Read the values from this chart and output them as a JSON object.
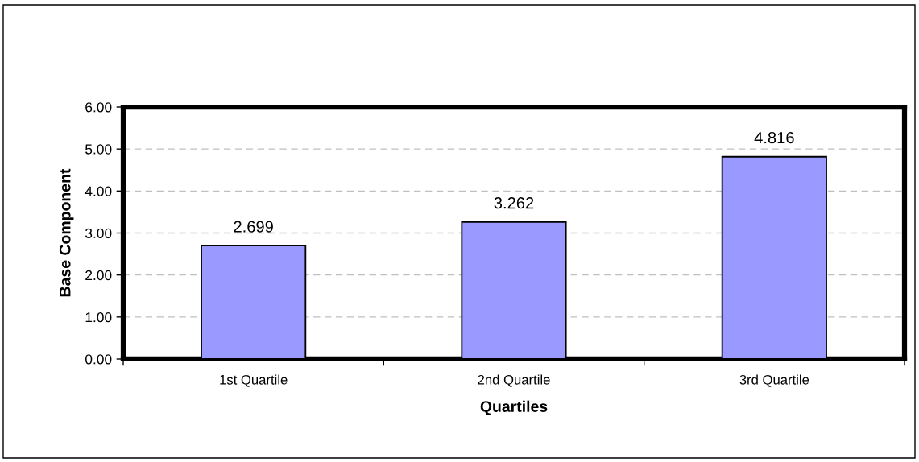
{
  "chart_data": {
    "type": "bar",
    "xlabel": "Quartiles",
    "ylabel": "Base Component",
    "categories": [
      "1st Quartile",
      "2nd Quartile",
      "3rd Quartile"
    ],
    "values": [
      2.699,
      3.262,
      4.816
    ],
    "color": "#9999ff",
    "ylim": [
      0,
      6
    ],
    "yticks": [
      {
        "value": 0,
        "label": "0.00"
      },
      {
        "value": 1,
        "label": "1.00"
      },
      {
        "value": 2,
        "label": "2.00"
      },
      {
        "value": 3,
        "label": "3.00"
      },
      {
        "value": 4,
        "label": "4.00"
      },
      {
        "value": 5,
        "label": "5.00"
      },
      {
        "value": 6,
        "label": "6.00"
      }
    ],
    "grid": "y",
    "data_labels": true
  }
}
